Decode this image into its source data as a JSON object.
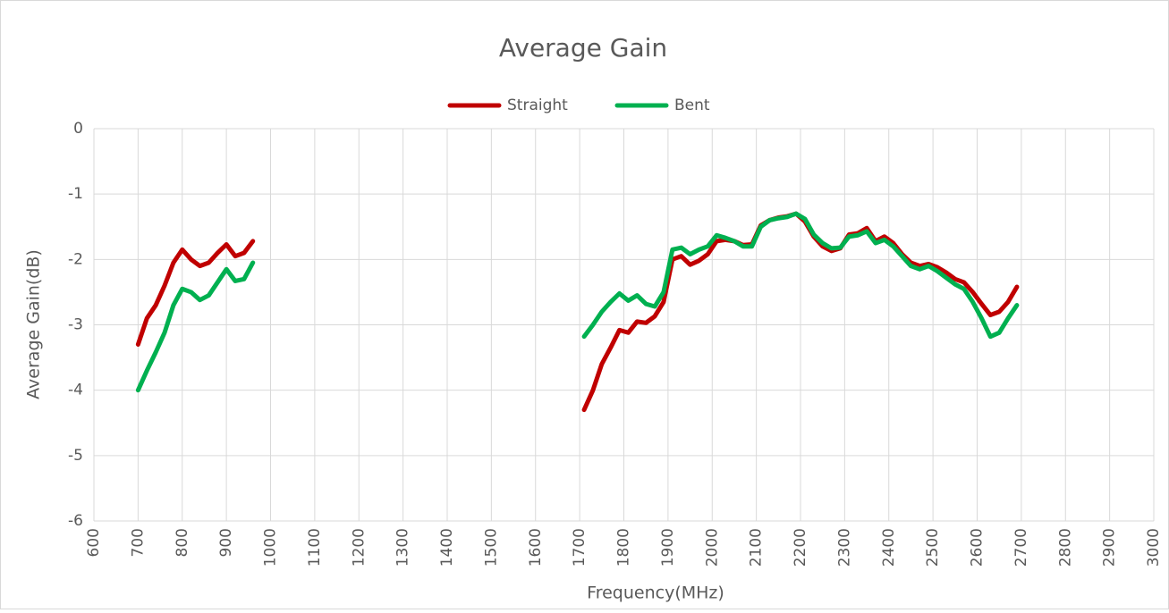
{
  "chart_data": {
    "type": "line",
    "title": "Average Gain",
    "xlabel": "Frequency(MHz)",
    "ylabel": "Average Gain(dB)",
    "x": [
      700,
      720,
      740,
      760,
      780,
      800,
      820,
      840,
      860,
      880,
      900,
      920,
      940,
      960,
      1300,
      1710,
      1730,
      1750,
      1770,
      1790,
      1810,
      1830,
      1850,
      1870,
      1890,
      1910,
      1930,
      1950,
      1970,
      1990,
      2010,
      2030,
      2050,
      2070,
      2090,
      2110,
      2130,
      2150,
      2170,
      2190,
      2210,
      2230,
      2250,
      2270,
      2290,
      2310,
      2330,
      2350,
      2370,
      2390,
      2410,
      2430,
      2450,
      2470,
      2490,
      2510,
      2530,
      2550,
      2570,
      2590,
      2610,
      2630,
      2650,
      2670,
      2690
    ],
    "series": [
      {
        "name": "Straight",
        "color": "#c00000",
        "values": [
          -3.3,
          -2.9,
          -2.7,
          -2.4,
          -2.05,
          -1.85,
          -2.0,
          -2.1,
          -2.05,
          -1.9,
          -1.77,
          -1.95,
          -1.9,
          -1.72,
          null,
          -4.3,
          -4.0,
          -3.6,
          -3.35,
          -3.08,
          -3.12,
          -2.95,
          -2.97,
          -2.87,
          -2.65,
          -2.0,
          -1.95,
          -2.08,
          -2.02,
          -1.92,
          -1.72,
          -1.7,
          -1.72,
          -1.78,
          -1.77,
          -1.48,
          -1.4,
          -1.36,
          -1.34,
          -1.3,
          -1.42,
          -1.65,
          -1.8,
          -1.87,
          -1.83,
          -1.62,
          -1.6,
          -1.52,
          -1.72,
          -1.65,
          -1.75,
          -1.92,
          -2.05,
          -2.1,
          -2.07,
          -2.12,
          -2.2,
          -2.3,
          -2.35,
          -2.5,
          -2.68,
          -2.85,
          -2.8,
          -2.65,
          -2.42
        ]
      },
      {
        "name": "Bent",
        "color": "#00b050",
        "values": [
          -4.0,
          -3.7,
          -3.42,
          -3.12,
          -2.7,
          -2.45,
          -2.5,
          -2.62,
          -2.55,
          -2.35,
          -2.15,
          -2.33,
          -2.3,
          -2.05,
          null,
          -3.18,
          -3.0,
          -2.8,
          -2.65,
          -2.52,
          -2.63,
          -2.55,
          -2.68,
          -2.72,
          -2.5,
          -1.85,
          -1.82,
          -1.92,
          -1.85,
          -1.8,
          -1.63,
          -1.67,
          -1.72,
          -1.8,
          -1.8,
          -1.5,
          -1.4,
          -1.37,
          -1.35,
          -1.3,
          -1.38,
          -1.62,
          -1.75,
          -1.83,
          -1.82,
          -1.65,
          -1.63,
          -1.57,
          -1.75,
          -1.7,
          -1.8,
          -1.95,
          -2.1,
          -2.15,
          -2.1,
          -2.18,
          -2.28,
          -2.38,
          -2.45,
          -2.65,
          -2.9,
          -3.18,
          -3.12,
          -2.9,
          -2.7
        ]
      }
    ],
    "xlim": [
      600,
      3000
    ],
    "xticks": [
      600,
      700,
      800,
      900,
      1000,
      1100,
      1200,
      1300,
      1400,
      1500,
      1600,
      1700,
      1800,
      1900,
      2000,
      2100,
      2200,
      2300,
      2400,
      2500,
      2600,
      2700,
      2800,
      2900,
      3000
    ],
    "ylim": [
      -6,
      0
    ],
    "yticks": [
      0,
      -1,
      -2,
      -3,
      -4,
      -5,
      -6
    ],
    "grid": true,
    "legend": "top"
  }
}
